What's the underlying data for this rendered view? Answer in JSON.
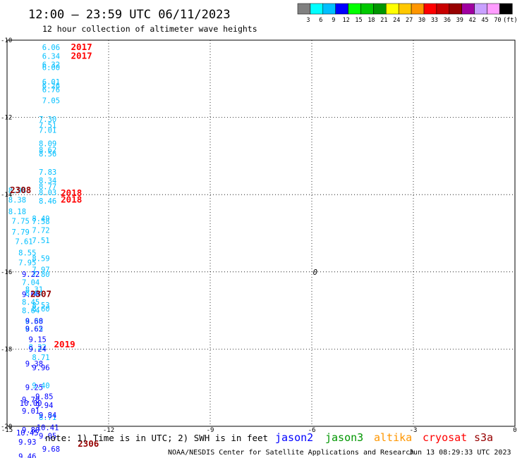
{
  "header": {
    "title": "12:00 – 23:59 UTC 06/11/2023",
    "subtitle": "12 hour collection of altimeter wave heights"
  },
  "colorbar": {
    "labels": [
      "3",
      "6",
      "9",
      "12",
      "15",
      "18",
      "21",
      "24",
      "27",
      "30",
      "33",
      "36",
      "39",
      "42",
      "45",
      "70",
      "(ft)"
    ],
    "colors": [
      "#808080",
      "#00ffff",
      "#00bfff",
      "#0000ff",
      "#00ff00",
      "#00c800",
      "#009600",
      "#ffff00",
      "#ffc800",
      "#ff9600",
      "#ff0000",
      "#c80000",
      "#960000",
      "#a000a0",
      "#c8a0ff",
      "#ff9cff",
      "#000000"
    ]
  },
  "note": "note:  1) Time is in UTC;  2) SWH is in feet",
  "legend": [
    {
      "name": "jason2",
      "color": "#0000ff"
    },
    {
      "name": "jason3",
      "color": "#009600"
    },
    {
      "name": "altika",
      "color": "#ff9600"
    },
    {
      "name": "cryosat",
      "color": "#ff0000"
    },
    {
      "name": "s3a",
      "color": "#960000"
    }
  ],
  "footer": {
    "credit": "NOAA/NESDIS Center for Satellite Applications and Research",
    "timestamp": "Jun 13 08:29:33 UTC 2023"
  },
  "chart_data": {
    "type": "scatter",
    "title": "12:00 – 23:59 UTC 06/11/2023",
    "subtitle": "12 hour collection of altimeter wave heights",
    "xlim": [
      -15,
      0
    ],
    "ylim": [
      -20,
      -10
    ],
    "x_ticks": [
      "-15",
      "-12",
      "-9",
      "-6",
      "-3",
      "0"
    ],
    "y_ticks": [
      "-10",
      "-12",
      "-14",
      "-16",
      "-18",
      "-20"
    ],
    "grid": true,
    "points": [
      {
        "x": -13.7,
        "y": -10.18,
        "v": "6.06",
        "c": "#00bfff"
      },
      {
        "x": -13.7,
        "y": -10.41,
        "v": "6.34",
        "c": "#00bfff"
      },
      {
        "x": -13.7,
        "y": -10.63,
        "v": "6.32",
        "c": "#00bfff"
      },
      {
        "x": -13.7,
        "y": -10.7,
        "v": "6.00",
        "c": "#00bfff"
      },
      {
        "x": -13.7,
        "y": -11.08,
        "v": "6.01",
        "c": "#00bfff"
      },
      {
        "x": -13.7,
        "y": -11.18,
        "v": "6.26",
        "c": "#00bfff"
      },
      {
        "x": -13.7,
        "y": -11.28,
        "v": "6.76",
        "c": "#00bfff"
      },
      {
        "x": -13.7,
        "y": -11.56,
        "v": "7.05",
        "c": "#00bfff"
      },
      {
        "x": -13.8,
        "y": -12.04,
        "v": "7.30",
        "c": "#00bfff"
      },
      {
        "x": -13.8,
        "y": -12.2,
        "v": "7.51",
        "c": "#00bfff"
      },
      {
        "x": -13.8,
        "y": -12.33,
        "v": "7.01",
        "c": "#00bfff"
      },
      {
        "x": -13.8,
        "y": -12.67,
        "v": "8.09",
        "c": "#00bfff"
      },
      {
        "x": -13.8,
        "y": -12.84,
        "v": "8.62",
        "c": "#00bfff"
      },
      {
        "x": -13.8,
        "y": -12.94,
        "v": "8.56",
        "c": "#00bfff"
      },
      {
        "x": -13.8,
        "y": -13.41,
        "v": "7.83",
        "c": "#00bfff"
      },
      {
        "x": -13.8,
        "y": -13.63,
        "v": "8.34",
        "c": "#00bfff"
      },
      {
        "x": -13.8,
        "y": -13.79,
        "v": "8.77",
        "c": "#00bfff"
      },
      {
        "x": -13.8,
        "y": -13.94,
        "v": "8.03",
        "c": "#00bfff"
      },
      {
        "x": -13.8,
        "y": -14.16,
        "v": "8.46",
        "c": "#00bfff"
      },
      {
        "x": -14.7,
        "y": -13.89,
        "v": "8.98",
        "c": "#00bfff"
      },
      {
        "x": -14.7,
        "y": -14.13,
        "v": "8.38",
        "c": "#00bfff"
      },
      {
        "x": -14.7,
        "y": -14.43,
        "v": "8.18",
        "c": "#00bfff"
      },
      {
        "x": -14.6,
        "y": -14.68,
        "v": "7.75",
        "c": "#00bfff"
      },
      {
        "x": -14.6,
        "y": -14.96,
        "v": "7.79",
        "c": "#00bfff"
      },
      {
        "x": -14.5,
        "y": -15.21,
        "v": "7.61",
        "c": "#00bfff"
      },
      {
        "x": -14.4,
        "y": -15.5,
        "v": "8.55",
        "c": "#00bfff"
      },
      {
        "x": -14.4,
        "y": -15.76,
        "v": "7.95",
        "c": "#00bfff"
      },
      {
        "x": -14.0,
        "y": -14.62,
        "v": "8.49",
        "c": "#00bfff"
      },
      {
        "x": -14.0,
        "y": -14.69,
        "v": "7.58",
        "c": "#00bfff"
      },
      {
        "x": -14.0,
        "y": -14.92,
        "v": "7.72",
        "c": "#00bfff"
      },
      {
        "x": -14.0,
        "y": -15.18,
        "v": "7.51",
        "c": "#00bfff"
      },
      {
        "x": -14.0,
        "y": -15.65,
        "v": "8.59",
        "c": "#00bfff"
      },
      {
        "x": -14.0,
        "y": -15.94,
        "v": "7.97",
        "c": "#00bfff"
      },
      {
        "x": -14.0,
        "y": -16.06,
        "v": "7.80",
        "c": "#00bfff"
      },
      {
        "x": -14.3,
        "y": -16.27,
        "v": "7.04",
        "c": "#00bfff"
      },
      {
        "x": -14.2,
        "y": -16.45,
        "v": "8.31",
        "c": "#00bfff"
      },
      {
        "x": -14.2,
        "y": -16.55,
        "v": "8.04",
        "c": "#00bfff"
      },
      {
        "x": -14.3,
        "y": -16.78,
        "v": "8.45",
        "c": "#00bfff"
      },
      {
        "x": -14.3,
        "y": -17.0,
        "v": "8.64",
        "c": "#00bfff"
      },
      {
        "x": -14.0,
        "y": -16.86,
        "v": "8.53",
        "c": "#00bfff"
      },
      {
        "x": -14.0,
        "y": -16.95,
        "v": "8.60",
        "c": "#00bfff"
      },
      {
        "x": -14.2,
        "y": -17.27,
        "v": "8.30",
        "c": "#00bfff"
      },
      {
        "x": -14.2,
        "y": -17.47,
        "v": "8.65",
        "c": "#00bfff"
      },
      {
        "x": -14.1,
        "y": -17.95,
        "v": "8.22",
        "c": "#00bfff"
      },
      {
        "x": -14.0,
        "y": -18.21,
        "v": "8.71",
        "c": "#00bfff"
      },
      {
        "x": -14.0,
        "y": -18.94,
        "v": "9.40",
        "c": "#00bfff"
      },
      {
        "x": -13.8,
        "y": -19.76,
        "v": "8.71",
        "c": "#00bfff"
      },
      {
        "x": -14.3,
        "y": -16.06,
        "v": "9.22",
        "c": "#0000ff"
      },
      {
        "x": -14.3,
        "y": -16.58,
        "v": "9.66",
        "c": "#0000ff"
      },
      {
        "x": -14.2,
        "y": -17.27,
        "v": "9.68",
        "c": "#0000ff"
      },
      {
        "x": -14.2,
        "y": -17.47,
        "v": "9.62",
        "c": "#0000ff"
      },
      {
        "x": -14.1,
        "y": -17.75,
        "v": "9.15",
        "c": "#0000ff"
      },
      {
        "x": -14.1,
        "y": -17.99,
        "v": "9.24",
        "c": "#0000ff"
      },
      {
        "x": -14.2,
        "y": -18.38,
        "v": "9.38",
        "c": "#0000ff"
      },
      {
        "x": -14.0,
        "y": -18.48,
        "v": "9.96",
        "c": "#0000ff"
      },
      {
        "x": -14.2,
        "y": -18.99,
        "v": "9.25",
        "c": "#0000ff"
      },
      {
        "x": -13.9,
        "y": -19.22,
        "v": "9.85",
        "c": "#0000ff"
      },
      {
        "x": -14.3,
        "y": -19.31,
        "v": "9.70",
        "c": "#0000ff"
      },
      {
        "x": -14.3,
        "y": -19.4,
        "v": "10.00",
        "c": "#0000ff"
      },
      {
        "x": -13.9,
        "y": -19.45,
        "v": "9.94",
        "c": "#0000ff"
      },
      {
        "x": -14.3,
        "y": -19.6,
        "v": "9.01",
        "c": "#0000ff"
      },
      {
        "x": -13.8,
        "y": -19.71,
        "v": "9.84",
        "c": "#0000ff"
      },
      {
        "x": -13.8,
        "y": -20.03,
        "v": "10.41",
        "c": "#0000ff"
      },
      {
        "x": -14.3,
        "y": -20.09,
        "v": "9.80",
        "c": "#0000ff"
      },
      {
        "x": -14.4,
        "y": -20.16,
        "v": "10.45",
        "c": "#0000ff"
      },
      {
        "x": -13.8,
        "y": -20.25,
        "v": "9.05",
        "c": "#0000ff"
      },
      {
        "x": -14.4,
        "y": -20.4,
        "v": "9.93",
        "c": "#0000ff"
      },
      {
        "x": -13.7,
        "y": -20.58,
        "v": "9.68",
        "c": "#0000ff"
      },
      {
        "x": -14.4,
        "y": -20.78,
        "v": "9.46",
        "c": "#0000ff"
      }
    ],
    "cycle_labels": [
      {
        "x": -12.8,
        "y": -10.18,
        "text": "2017",
        "c": "#ff0000"
      },
      {
        "x": -12.8,
        "y": -10.41,
        "text": "2017",
        "c": "#ff0000"
      },
      {
        "x": -13.1,
        "y": -13.96,
        "text": "2018",
        "c": "#ff0000"
      },
      {
        "x": -13.1,
        "y": -14.13,
        "text": "2018",
        "c": "#ff0000"
      },
      {
        "x": -14.6,
        "y": -13.89,
        "text": "2308",
        "c": "#960000"
      },
      {
        "x": -14.0,
        "y": -16.58,
        "text": "2307",
        "c": "#960000"
      },
      {
        "x": -13.3,
        "y": -17.88,
        "text": "2019",
        "c": "#ff0000"
      },
      {
        "x": -12.6,
        "y": -20.46,
        "text": "2306",
        "c": "#960000"
      }
    ],
    "marker": {
      "x": -5.9,
      "y": -16.0,
      "text": "0",
      "c": "#000000"
    }
  }
}
